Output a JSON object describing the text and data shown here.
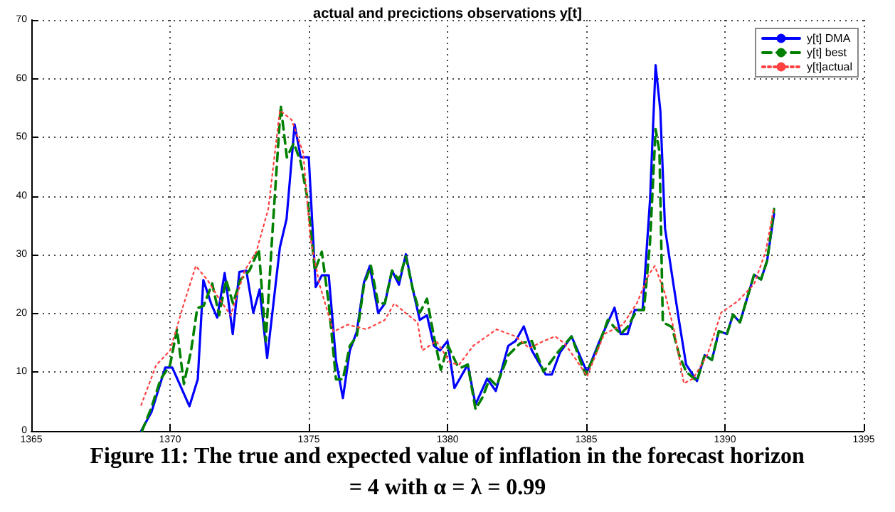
{
  "chart_data": {
    "type": "line",
    "title": "actual and precictions observations y[t]",
    "annotations": [
      "Figure 11: The true and expected value of inflation in the forecast horizon",
      "= 4 with α = λ = 0.99"
    ],
    "xlim": [
      1365,
      1395
    ],
    "xticks": [
      1365,
      1370,
      1375,
      1380,
      1385,
      1390,
      1395
    ],
    "ylim": [
      0,
      70
    ],
    "yticks": [
      0,
      10,
      20,
      30,
      40,
      50,
      60,
      70
    ],
    "grid": true,
    "legend": "top right",
    "marker": "none",
    "series": [
      {
        "name": "y[t] DMA",
        "color": "#0000ff",
        "line_style": "solid",
        "x": [
          1368.96,
          1369.33,
          1369.83,
          1370.08,
          1370.42,
          1370.7,
          1371.0,
          1371.2,
          1371.48,
          1371.7,
          1371.97,
          1372.26,
          1372.5,
          1372.75,
          1373.0,
          1373.23,
          1373.5,
          1373.96,
          1374.2,
          1374.49,
          1374.71,
          1375.0,
          1375.25,
          1375.47,
          1375.72,
          1375.98,
          1376.23,
          1376.48,
          1376.73,
          1376.99,
          1377.2,
          1377.5,
          1377.74,
          1378.0,
          1378.25,
          1378.5,
          1378.75,
          1379.0,
          1379.26,
          1379.51,
          1379.73,
          1380.0,
          1380.25,
          1380.73,
          1381.01,
          1381.43,
          1381.74,
          1382.19,
          1382.45,
          1382.75,
          1383.04,
          1383.54,
          1383.76,
          1384.05,
          1384.47,
          1385.03,
          1385.48,
          1386.02,
          1386.24,
          1386.49,
          1386.75,
          1387.03,
          1387.3,
          1387.5,
          1387.67,
          1387.84,
          1388.09,
          1388.35,
          1388.6,
          1388.99,
          1389.27,
          1389.53,
          1389.78,
          1390.07,
          1390.29,
          1390.54,
          1391.05,
          1391.3,
          1391.52,
          1391.77
        ],
        "values": [
          0,
          3.2,
          10.8,
          10.8,
          7.2,
          4.2,
          8.8,
          25.7,
          21.7,
          19.3,
          26.9,
          16.5,
          27.1,
          27.3,
          20.1,
          24.1,
          12.4,
          31.3,
          36.1,
          52.2,
          46.6,
          46.6,
          24.5,
          26.5,
          26.5,
          12.0,
          5.6,
          13.7,
          16.9,
          25.3,
          28.1,
          20.1,
          21.7,
          27.3,
          24.9,
          30.1,
          24.1,
          18.9,
          19.7,
          14.5,
          13.7,
          15.3,
          7.3,
          11.3,
          4.5,
          8.9,
          6.8,
          14.5,
          15.3,
          17.8,
          13.7,
          9.6,
          9.6,
          13.3,
          16.1,
          10.0,
          15.3,
          21.0,
          16.5,
          16.5,
          20.6,
          20.6,
          39.4,
          62.3,
          54.6,
          34.5,
          26.6,
          18.6,
          11.3,
          8.5,
          12.9,
          12.1,
          17,
          16.5,
          19.8,
          18.5,
          26.6,
          25.8,
          29,
          37
        ]
      },
      {
        "name": "y[t] best",
        "color": "#008000",
        "line_style": "dashed",
        "x": [
          1368.99,
          1369.33,
          1369.66,
          1370.0,
          1370.25,
          1370.5,
          1370.76,
          1370.98,
          1371.21,
          1371.52,
          1371.77,
          1372.02,
          1372.27,
          1372.53,
          1372.86,
          1373.2,
          1373.45,
          1373.7,
          1373.99,
          1374.21,
          1374.46,
          1374.71,
          1374.96,
          1375.22,
          1375.47,
          1375.72,
          1375.98,
          1376.23,
          1376.48,
          1376.73,
          1376.99,
          1377.24,
          1377.5,
          1377.74,
          1378.0,
          1378.25,
          1378.5,
          1378.75,
          1379.0,
          1379.26,
          1379.51,
          1379.76,
          1380.02,
          1380.35,
          1380.51,
          1380.73,
          1381.01,
          1381.26,
          1381.52,
          1381.77,
          1382.19,
          1382.61,
          1383.04,
          1383.46,
          1383.96,
          1384.47,
          1384.97,
          1385.31,
          1385.78,
          1386.24,
          1386.49,
          1386.83,
          1387.08,
          1387.3,
          1387.5,
          1387.64,
          1387.76,
          1388.09,
          1388.35,
          1388.6,
          1388.99,
          1389.27,
          1389.53,
          1389.78,
          1390.07,
          1390.29,
          1390.54,
          1391.05,
          1391.3,
          1391.52,
          1391.77
        ],
        "values": [
          0,
          4,
          8.8,
          11.2,
          17.3,
          8,
          13.7,
          20.9,
          21.3,
          25.1,
          19.7,
          25.7,
          21.7,
          25.7,
          27.3,
          30.9,
          15.3,
          34.5,
          55.4,
          46.6,
          49,
          45.8,
          39.4,
          27.3,
          30.5,
          21.7,
          8.8,
          8.8,
          14.5,
          16.1,
          24.9,
          28.1,
          21.7,
          21.7,
          27.3,
          25.7,
          29.7,
          24.1,
          20.1,
          22.5,
          16.1,
          10.4,
          14.5,
          11.2,
          10.8,
          11.3,
          3.7,
          5.7,
          8.9,
          7.7,
          12.9,
          14.9,
          15.3,
          10.1,
          13.3,
          16.1,
          9.6,
          12.9,
          18.9,
          16.5,
          17.7,
          20.6,
          20.6,
          32.2,
          51.4,
          47.5,
          18.5,
          17.7,
          12.9,
          10.1,
          8.5,
          12.9,
          12.1,
          17,
          16.5,
          19.8,
          18.5,
          26.6,
          25.8,
          29,
          37.8
        ]
      },
      {
        "name": "y[t]actual",
        "color": "#ff4040",
        "line_style": "dotted",
        "x": [
          1368.96,
          1369.5,
          1370.0,
          1370.5,
          1370.93,
          1371.35,
          1371.77,
          1372.19,
          1372.69,
          1373.11,
          1373.54,
          1373.96,
          1374.38,
          1374.8,
          1375.05,
          1375.39,
          1375.89,
          1376.4,
          1377.07,
          1377.74,
          1378.08,
          1378.59,
          1378.92,
          1379.09,
          1379.6,
          1380.1,
          1380.42,
          1380.93,
          1381.77,
          1382.45,
          1382.95,
          1383.46,
          1383.88,
          1384.22,
          1384.64,
          1385.03,
          1385.65,
          1386.32,
          1386.83,
          1387.25,
          1387.47,
          1387.84,
          1388.18,
          1388.52,
          1388.85,
          1389.36,
          1389.87,
          1390.46,
          1391.05,
          1391.47,
          1391.77
        ],
        "values": [
          4.4,
          11.2,
          13.7,
          21.7,
          28.1,
          25.7,
          22.5,
          19.7,
          27.3,
          30.5,
          37.8,
          54.6,
          53,
          47.4,
          32.9,
          24.9,
          16.9,
          18.1,
          17.3,
          18.9,
          21.7,
          19.7,
          18.5,
          13.7,
          15.3,
          11.6,
          11.3,
          14.5,
          17.3,
          16.1,
          14.1,
          15.3,
          16.1,
          14.9,
          12.1,
          9.3,
          16.5,
          18.1,
          21.8,
          26.6,
          28.1,
          23.4,
          16.9,
          8.1,
          8.9,
          12.9,
          20.2,
          22.1,
          25,
          30.6,
          38.2
        ]
      }
    ]
  }
}
